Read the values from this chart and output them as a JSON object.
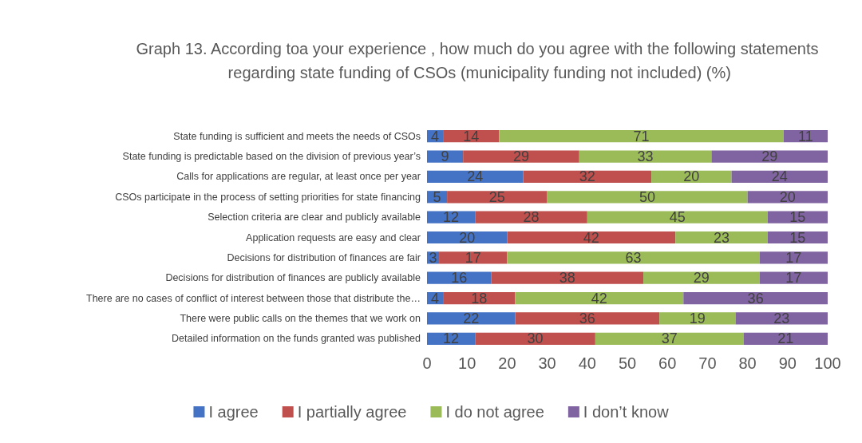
{
  "chart_data": {
    "type": "bar",
    "orientation": "horizontal",
    "stacked": true,
    "title": "Graph 13. According toa your experience , how much do you agree with the following statements regarding state funding of CSOs (municipality funding not included) (%)",
    "categories": [
      "State funding is sufficient and meets the needs of CSOs",
      "State funding is predictable based on the division of previous year’s",
      "Calls for applications are regular, at least once per year",
      "CSOs participate in the process of setting priorities for state financing",
      "Selection criteria are clear and publicly available",
      "Application requests are easy and clear",
      "Decisions for distribution of finances are fair",
      "Decisions for distribution of finances are publicly available",
      "There are no cases of conflict of interest between those that distribute the…",
      "There were public calls on the themes that we work on",
      "Detailed information on the funds granted was published"
    ],
    "series": [
      {
        "name": "I agree",
        "color": "#4472c4",
        "values": [
          4,
          9,
          24,
          5,
          12,
          20,
          3,
          16,
          4,
          22,
          12
        ]
      },
      {
        "name": "I partially agree",
        "color": "#c0504d",
        "values": [
          14,
          29,
          32,
          25,
          28,
          42,
          17,
          38,
          18,
          36,
          30
        ]
      },
      {
        "name": "I do not agree",
        "color": "#9bbb59",
        "values": [
          71,
          33,
          20,
          50,
          45,
          23,
          63,
          29,
          42,
          19,
          37
        ]
      },
      {
        "name": "I don’t know",
        "color": "#8064a2",
        "values": [
          11,
          29,
          24,
          20,
          15,
          15,
          17,
          17,
          36,
          23,
          21
        ]
      }
    ],
    "xlim": [
      0,
      100
    ],
    "xticks": [
      0,
      10,
      20,
      30,
      40,
      50,
      60,
      70,
      80,
      90,
      100
    ],
    "data_labels": true,
    "grid": false,
    "legend": "bottom"
  }
}
